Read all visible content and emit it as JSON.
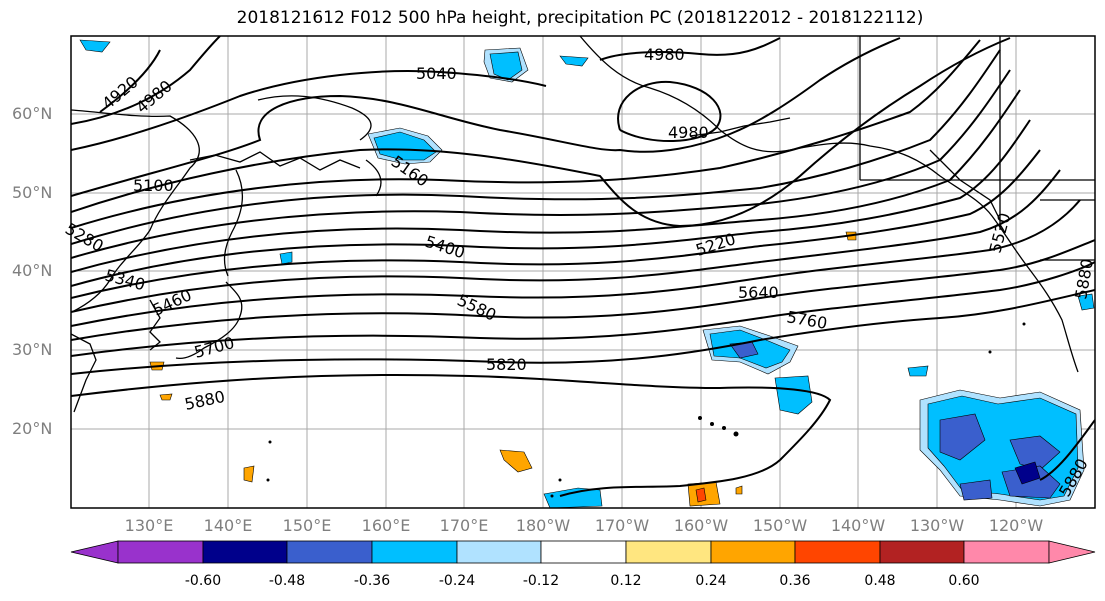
{
  "title": "2018121612 F012 500 hPa height, precipitation PC (2018122012 - 2018122112)",
  "map": {
    "lat_labels": [
      "60°N",
      "50°N",
      "40°N",
      "30°N",
      "20°N"
    ],
    "lon_labels": [
      "130°E",
      "140°E",
      "150°E",
      "160°E",
      "170°E",
      "180°W",
      "170°W",
      "160°W",
      "150°W",
      "140°W",
      "130°W",
      "120°W"
    ],
    "contour_labels": [
      "4920",
      "4980",
      "5040",
      "4980",
      "4980",
      "5100",
      "5160",
      "5280",
      "5340",
      "5400",
      "5460",
      "5220",
      "5520",
      "5640",
      "5580",
      "5700",
      "5760",
      "5820",
      "5880",
      "5880",
      "5880"
    ],
    "colorbar": {
      "colors": [
        "#9932cc",
        "#00008b",
        "#3a5fcd",
        "#00bfff",
        "#b0e2ff",
        "#ffffff",
        "#ffe680",
        "#ffa500",
        "#ff4500",
        "#b22222",
        "#ff88aa"
      ],
      "tick_labels": [
        "-0.60",
        "-0.48",
        "-0.36",
        "-0.24",
        "-0.12",
        "0.12",
        "0.24",
        "0.36",
        "0.48",
        "0.60"
      ]
    }
  }
}
